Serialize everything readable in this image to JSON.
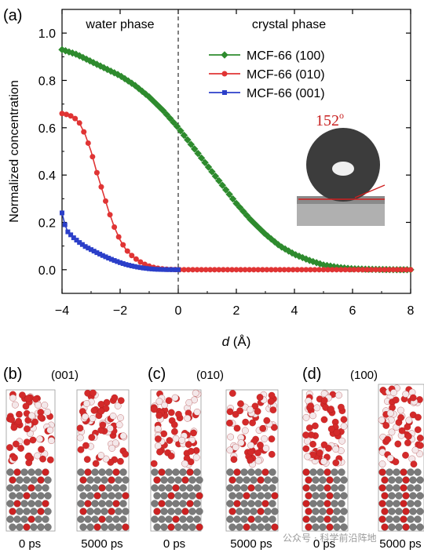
{
  "chart_data": {
    "type": "line",
    "panel_label": "(a)",
    "xlabel_italic": "d",
    "xlabel_rest": " (Å)",
    "ylabel": "Normalized concentration",
    "xlim": [
      -4,
      8
    ],
    "ylim": [
      -0.1,
      1.1
    ],
    "xticks": [
      "−4",
      "−2",
      "0",
      "2",
      "4",
      "6",
      "8"
    ],
    "xtick_values": [
      -4,
      -2,
      0,
      2,
      4,
      6,
      8
    ],
    "yticks": [
      "0.0",
      "0.2",
      "0.4",
      "0.6",
      "0.8",
      "1.0"
    ],
    "ytick_values": [
      0,
      0.2,
      0.4,
      0.6,
      0.8,
      1.0
    ],
    "annotations": {
      "left_region": "water phase",
      "right_region": "crystal phase",
      "contact_angle": "152",
      "contact_angle_sup": "o"
    },
    "legend_position": "top-right",
    "series": [
      {
        "name": "MCF-66 (100)",
        "color": "#2e8b2e",
        "marker": "diamond",
        "x": [
          -4,
          -3.5,
          -3,
          -2.5,
          -2,
          -1.5,
          -1,
          -0.5,
          0,
          0.5,
          1,
          1.5,
          2,
          2.5,
          3,
          3.5,
          4,
          4.5,
          5,
          5.5,
          6,
          6.5,
          7,
          7.5,
          8
        ],
        "y": [
          0.93,
          0.91,
          0.88,
          0.85,
          0.82,
          0.78,
          0.73,
          0.67,
          0.6,
          0.52,
          0.44,
          0.36,
          0.28,
          0.21,
          0.15,
          0.1,
          0.065,
          0.04,
          0.02,
          0.01,
          0.004,
          0.002,
          0.001,
          0,
          0
        ]
      },
      {
        "name": "MCF-66 (010)",
        "color": "#e03434",
        "marker": "circle",
        "x": [
          -4,
          -3.8,
          -3.6,
          -3.4,
          -3.2,
          -3,
          -2.8,
          -2.6,
          -2.4,
          -2.2,
          -2,
          -1.8,
          -1.6,
          -1.4,
          -1.2,
          -1,
          -0.8,
          -0.6,
          -0.4,
          -0.2,
          0,
          1,
          2,
          3,
          4,
          5,
          6,
          7,
          8
        ],
        "y": [
          0.66,
          0.655,
          0.645,
          0.62,
          0.57,
          0.5,
          0.41,
          0.33,
          0.25,
          0.18,
          0.125,
          0.085,
          0.06,
          0.04,
          0.025,
          0.015,
          0.008,
          0.004,
          0.002,
          0.001,
          0,
          0,
          0,
          0,
          0,
          0,
          0,
          0,
          0
        ]
      },
      {
        "name": "MCF-66 (001)",
        "color": "#2b3fc9",
        "marker": "square",
        "x": [
          -4,
          -3.9,
          -3.8,
          -3.6,
          -3.4,
          -3.2,
          -3,
          -2.8,
          -2.6,
          -2.4,
          -2.2,
          -2,
          -1.8,
          -1.6,
          -1.4,
          -1.2,
          -1,
          -0.8,
          -0.6,
          -0.4,
          -0.2,
          0
        ],
        "y": [
          0.24,
          0.19,
          0.16,
          0.135,
          0.115,
          0.098,
          0.085,
          0.072,
          0.06,
          0.049,
          0.039,
          0.03,
          0.022,
          0.016,
          0.011,
          0.007,
          0.004,
          0.002,
          0.001,
          0.0005,
          0.0002,
          0
        ]
      }
    ]
  },
  "bottom_panels": [
    {
      "letter": "(b)",
      "title": "(001)",
      "captions": [
        "0 ps",
        "5000 ps"
      ]
    },
    {
      "letter": "(c)",
      "title": "(010)",
      "captions": [
        "0 ps",
        "5000 ps"
      ]
    },
    {
      "letter": "(d)",
      "title": "(100)",
      "captions": [
        "0 ps",
        "5000 ps"
      ]
    }
  ],
  "watermark": "公众号 · 科学前沿阵地"
}
